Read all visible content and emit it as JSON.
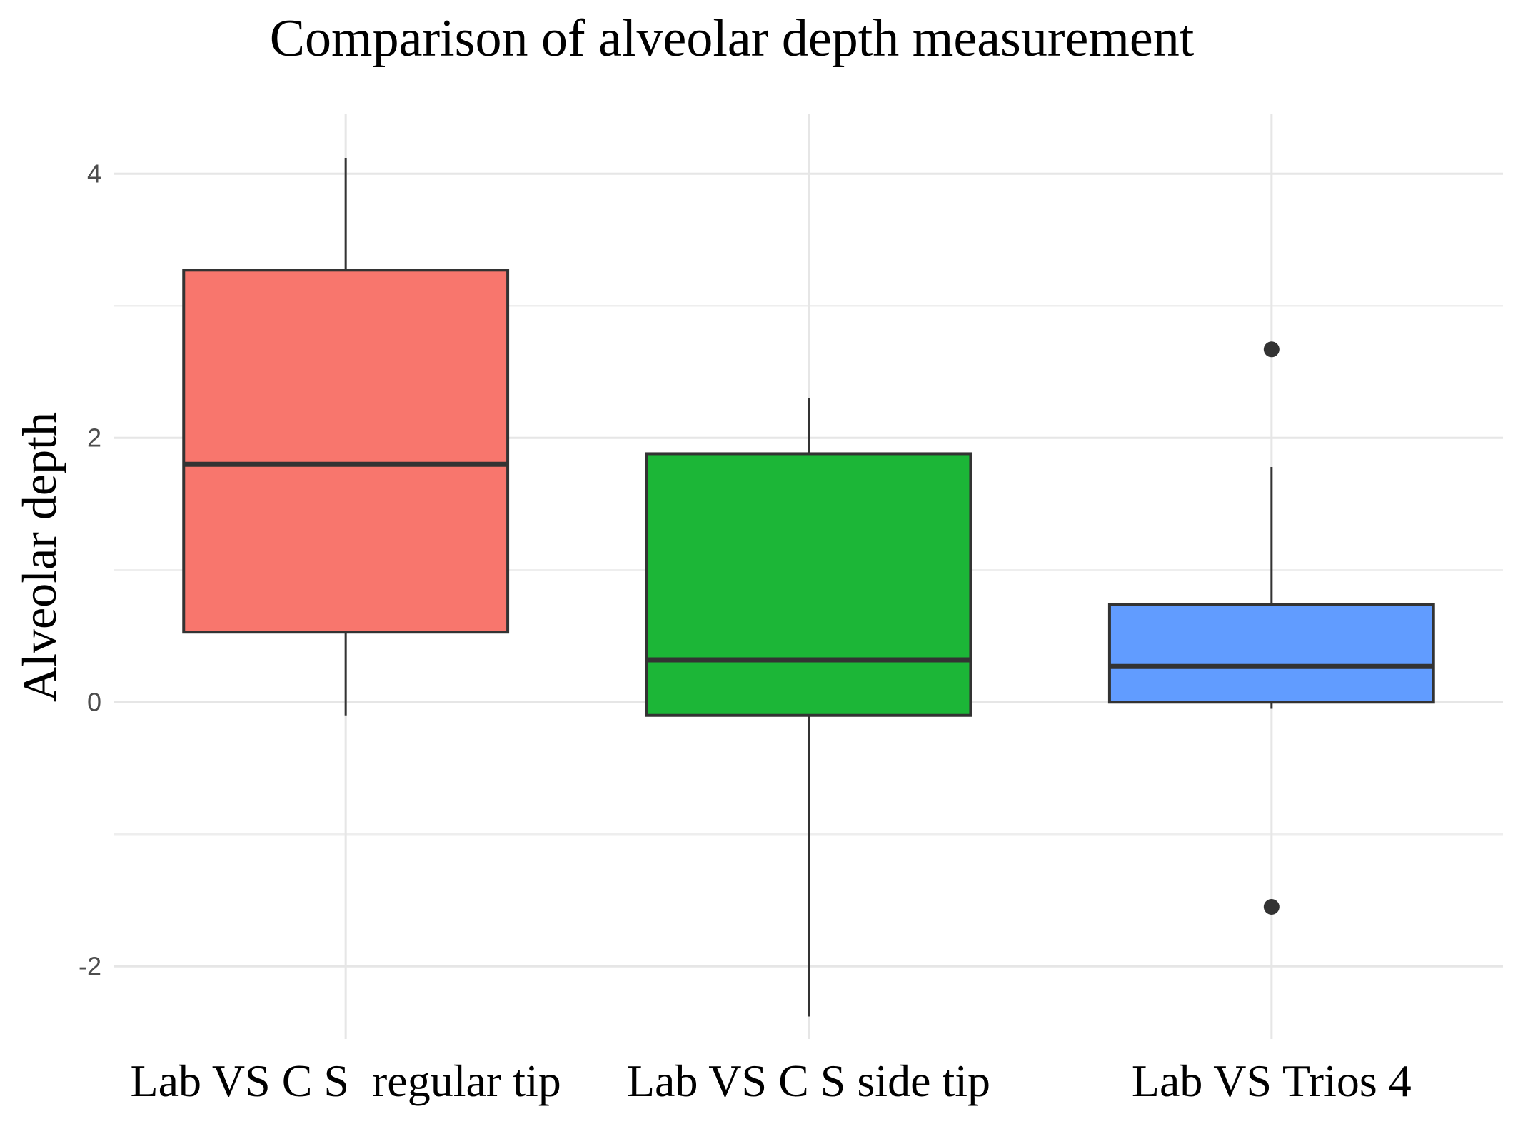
{
  "chart_data": {
    "type": "boxplot",
    "title": "Comparison of alveolar depth measurement",
    "xlabel": "",
    "ylabel": "Alveolar depth",
    "ylim": [
      -2.55,
      4.45
    ],
    "yticks": [
      -2,
      0,
      2,
      4
    ],
    "yticks_minor": [
      -1,
      1,
      3
    ],
    "ytick_labels": [
      "-2",
      "0",
      "2",
      "4"
    ],
    "grid": true,
    "legend": "none",
    "categories": [
      "Lab VS C S  regular tip",
      "Lab VS C S side tip",
      "Lab VS Trios 4"
    ],
    "series": [
      {
        "name": "Lab VS C S  regular tip",
        "color": "#F8766D",
        "whisker_low": -0.1,
        "q1": 0.53,
        "median": 1.8,
        "q3": 3.27,
        "whisker_high": 4.12,
        "outliers": []
      },
      {
        "name": "Lab VS C S side tip",
        "color": "#1CB637",
        "whisker_low": -2.38,
        "q1": -0.1,
        "median": 0.32,
        "q3": 1.88,
        "whisker_high": 2.3,
        "outliers": []
      },
      {
        "name": "Lab VS Trios 4",
        "color": "#619CFF",
        "whisker_low": -0.05,
        "q1": 0.0,
        "median": 0.27,
        "q3": 0.74,
        "whisker_high": 1.78,
        "outliers": [
          2.67,
          -1.55
        ]
      }
    ]
  }
}
